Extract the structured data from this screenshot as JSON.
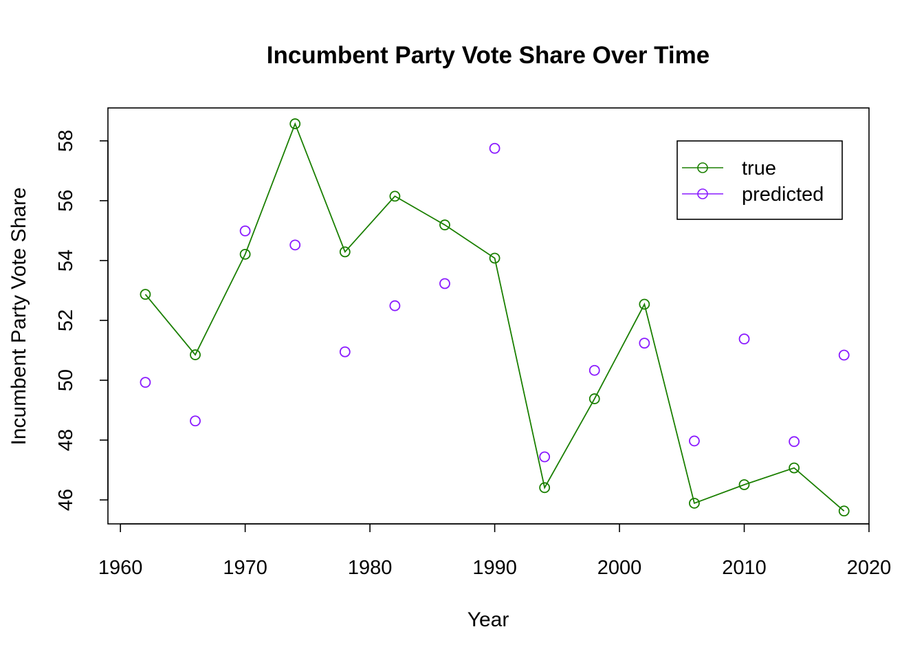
{
  "chart_data": {
    "type": "line",
    "title": "Incumbent Party Vote Share Over Time",
    "xlabel": "Year",
    "ylabel": "Incumbent Party Vote Share",
    "xlim": [
      1959,
      2020
    ],
    "ylim": [
      45.2,
      59.1
    ],
    "x_ticks": [
      1960,
      1970,
      1980,
      1990,
      2000,
      2010,
      2020
    ],
    "y_ticks": [
      46,
      48,
      50,
      52,
      54,
      56,
      58
    ],
    "x_tick_labels": [
      "1960",
      "1970",
      "1980",
      "1990",
      "2000",
      "2010",
      "2020"
    ],
    "y_tick_labels": [
      "46",
      "48",
      "50",
      "52",
      "54",
      "56",
      "58"
    ],
    "x": [
      1962,
      1966,
      1970,
      1974,
      1978,
      1982,
      1986,
      1990,
      1994,
      1998,
      2002,
      2006,
      2010,
      2014,
      2018
    ],
    "series": [
      {
        "name": "true",
        "style": "line-and-points",
        "color": "#1a7f00",
        "values": [
          52.87,
          50.85,
          54.21,
          58.57,
          54.29,
          56.15,
          55.19,
          54.08,
          46.41,
          49.38,
          52.54,
          45.89,
          46.51,
          47.07,
          45.63
        ]
      },
      {
        "name": "predicted",
        "style": "points",
        "color": "#8a1aff",
        "values": [
          49.93,
          48.64,
          54.99,
          54.52,
          50.95,
          52.49,
          53.23,
          57.75,
          47.44,
          50.33,
          51.24,
          47.97,
          51.38,
          47.95,
          50.84
        ]
      }
    ],
    "legend": {
      "placement": "top-right",
      "entries": [
        "true",
        "predicted"
      ]
    },
    "grid": false
  }
}
